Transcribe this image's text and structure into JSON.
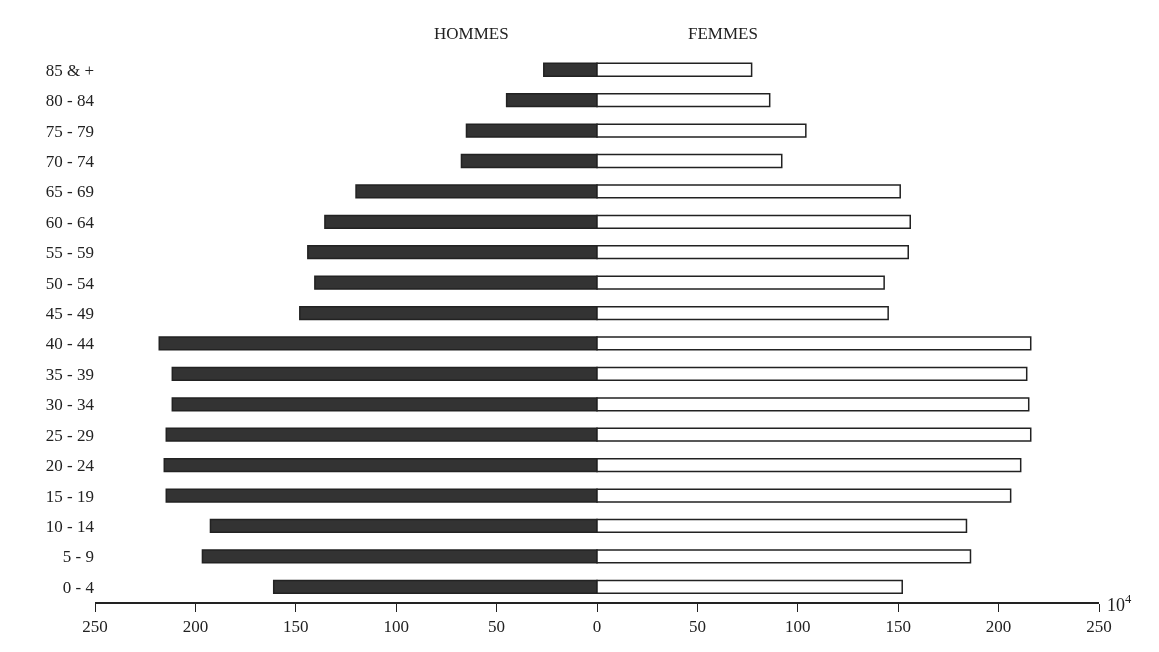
{
  "chart_data": {
    "type": "bar",
    "orientation": "horizontal",
    "categories": [
      "85 & +",
      "80 - 84",
      "75 - 79",
      "70 - 74",
      "65 - 69",
      "60 - 64",
      "55 - 59",
      "50 - 54",
      "45 - 49",
      "40 - 44",
      "35 - 39",
      "30 - 34",
      "25 - 29",
      "20 - 24",
      "15 - 19",
      "10 - 14",
      "5 - 9",
      "0 - 4"
    ],
    "series": [
      {
        "name": "HOMMES",
        "color": "#333333",
        "values": [
          -26.5,
          -45,
          -65,
          -67.5,
          -120,
          -135.5,
          -144,
          -140.5,
          -148,
          -218,
          -211.5,
          -211.5,
          -214.5,
          -215.5,
          -214.5,
          -192.5,
          -196.5,
          -161
        ]
      },
      {
        "name": "FEMMES",
        "color": "#ffffff",
        "values": [
          77,
          86,
          104,
          92,
          151,
          156,
          155,
          143,
          145,
          216,
          214,
          215,
          216,
          211,
          206,
          184,
          186,
          152
        ]
      }
    ],
    "xlabel": "10$^{4}$",
    "xlim": [
      -250,
      250
    ],
    "xticks": [
      {
        "value": -250,
        "label": "250"
      },
      {
        "value": -200,
        "label": "200"
      },
      {
        "value": -150,
        "label": "150"
      },
      {
        "value": -100,
        "label": "100"
      },
      {
        "value": -50,
        "label": "50"
      },
      0,
      50,
      100,
      150,
      200,
      250
    ],
    "stacked": true,
    "legend": false
  }
}
